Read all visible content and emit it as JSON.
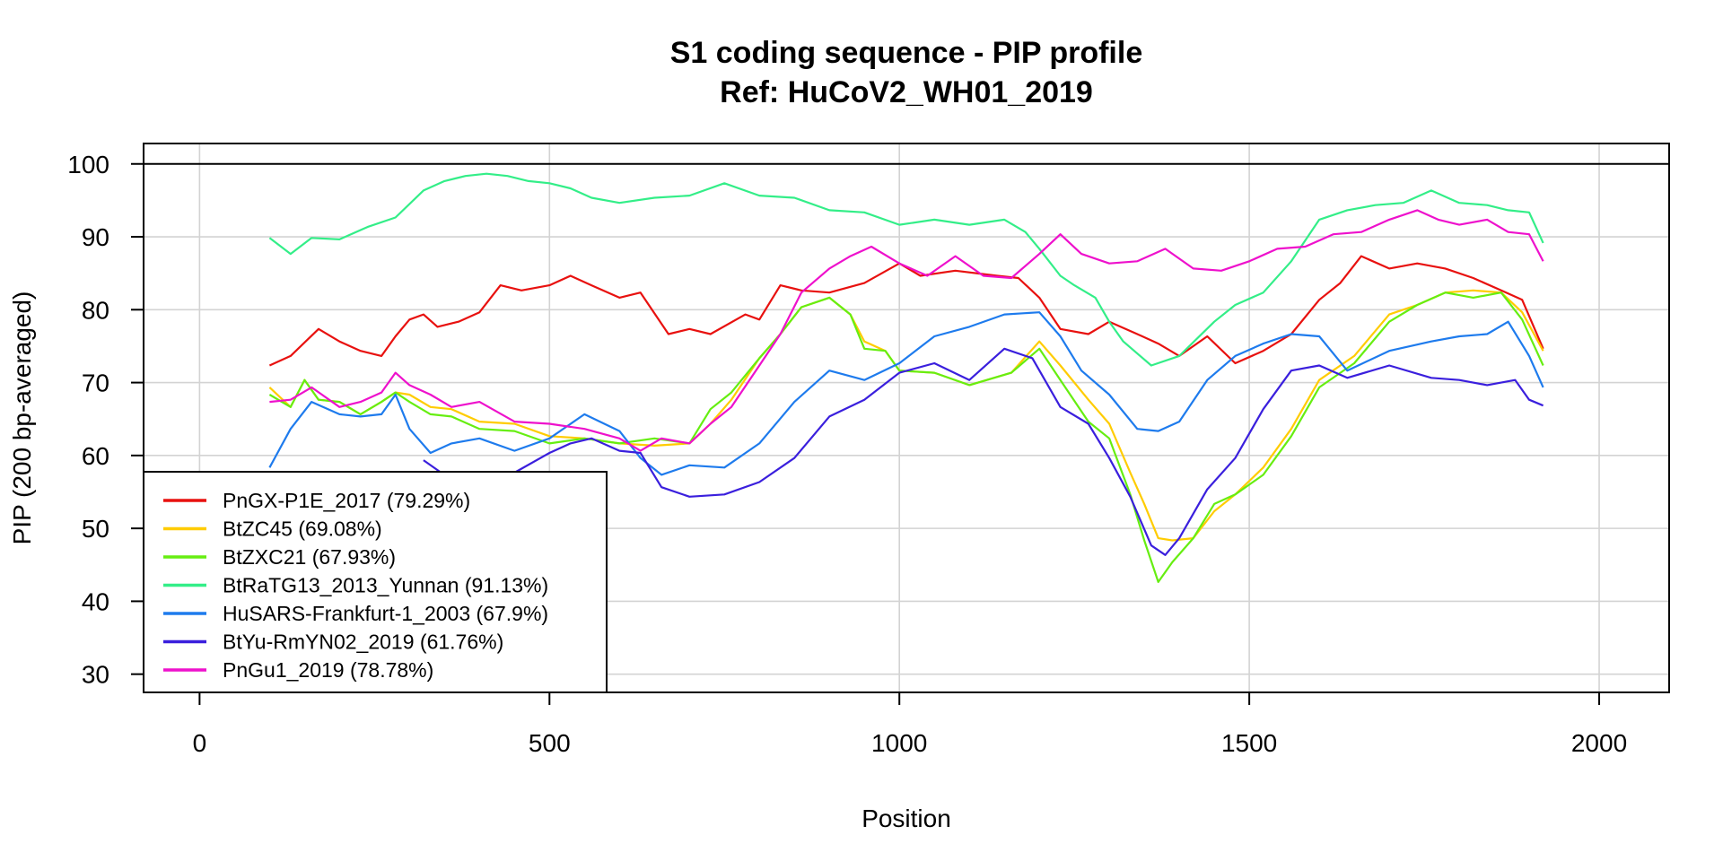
{
  "chart_data": {
    "type": "line",
    "title": "S1 coding sequence - PIP profile",
    "subtitle": "Ref: HuCoV2_WH01_2019",
    "xlabel": "Position",
    "ylabel": "PIP (200 bp-averaged)",
    "xlim": [
      -80,
      2100
    ],
    "ylim": [
      27.5,
      102.8
    ],
    "xticks": [
      0,
      500,
      1000,
      1500,
      2000
    ],
    "yticks": [
      30,
      40,
      50,
      60,
      70,
      80,
      90,
      100
    ],
    "grid": true,
    "reference_line": 100,
    "legend_position": "bottom-left",
    "series": [
      {
        "name": "PnGX-P1E_2017 (79.29%)",
        "color": "#e8110f",
        "x": [
          100,
          130,
          170,
          200,
          230,
          260,
          280,
          300,
          320,
          340,
          370,
          400,
          430,
          460,
          500,
          530,
          560,
          600,
          630,
          670,
          700,
          730,
          780,
          800,
          830,
          860,
          900,
          950,
          1000,
          1030,
          1080,
          1140,
          1170,
          1200,
          1230,
          1270,
          1300,
          1340,
          1370,
          1400,
          1440,
          1480,
          1520,
          1560,
          1600,
          1630,
          1660,
          1700,
          1740,
          1780,
          1820,
          1860,
          1890,
          1920
        ],
        "y": [
          72,
          74,
          77,
          76,
          74,
          74,
          76,
          79,
          79,
          78,
          78,
          80,
          83,
          83,
          83,
          85,
          83,
          82,
          82,
          77,
          77,
          77,
          79,
          79,
          83,
          83,
          82,
          84,
          86,
          85,
          85,
          85,
          84,
          82,
          77,
          77,
          78,
          77,
          75,
          74,
          76,
          73,
          74,
          77,
          81,
          84,
          87,
          86,
          86,
          86,
          84,
          83,
          81,
          75
        ]
      },
      {
        "name": "BtZC45 (69.08%)",
        "color": "#ffcc00",
        "x": [
          100,
          130,
          150,
          170,
          200,
          230,
          260,
          280,
          300,
          330,
          360,
          400,
          450,
          500,
          550,
          600,
          650,
          700,
          730,
          760,
          800,
          830,
          860,
          900,
          930,
          950,
          980,
          1000,
          1050,
          1100,
          1160,
          1200,
          1230,
          1270,
          1300,
          1330,
          1350,
          1370,
          1390,
          1420,
          1450,
          1480,
          1520,
          1560,
          1600,
          1650,
          1700,
          1740,
          1780,
          1820,
          1860,
          1890,
          1920
        ],
        "y": [
          69,
          67,
          70,
          68,
          67,
          66,
          67,
          69,
          68,
          67,
          66,
          65,
          64,
          63,
          62,
          62,
          61,
          62,
          64,
          68,
          73,
          77,
          80,
          82,
          79,
          76,
          74,
          72,
          71,
          70,
          71,
          76,
          72,
          68,
          64,
          58,
          53,
          49,
          48,
          49,
          52,
          55,
          58,
          64,
          70,
          74,
          79,
          81,
          82,
          83,
          82,
          80,
          74
        ]
      },
      {
        "name": "BtZXC21 (67.93%)",
        "color": "#66ee11",
        "x": [
          100,
          130,
          150,
          170,
          200,
          230,
          260,
          280,
          300,
          330,
          360,
          400,
          450,
          500,
          550,
          600,
          650,
          700,
          730,
          760,
          800,
          830,
          860,
          900,
          930,
          950,
          980,
          1000,
          1050,
          1100,
          1160,
          1200,
          1230,
          1270,
          1300,
          1330,
          1350,
          1370,
          1390,
          1420,
          1450,
          1480,
          1520,
          1560,
          1600,
          1650,
          1700,
          1740,
          1780,
          1820,
          1860,
          1890,
          1920
        ],
        "y": [
          68,
          67,
          70,
          68,
          67,
          66,
          67,
          69,
          67,
          66,
          65,
          64,
          63,
          62,
          62,
          62,
          62,
          62,
          66,
          69,
          73,
          77,
          80,
          82,
          79,
          75,
          74,
          72,
          71,
          70,
          71,
          75,
          70,
          65,
          62,
          55,
          48,
          43,
          45,
          49,
          53,
          55,
          57,
          63,
          69,
          73,
          78,
          81,
          82,
          82,
          82,
          79,
          72
        ]
      },
      {
        "name": "BtRaTG13_2013_Yunnan (91.13%)",
        "color": "#33ee88",
        "x": [
          100,
          130,
          160,
          200,
          240,
          280,
          320,
          350,
          380,
          410,
          440,
          470,
          500,
          530,
          560,
          600,
          650,
          700,
          750,
          800,
          850,
          900,
          950,
          1000,
          1050,
          1100,
          1150,
          1180,
          1200,
          1230,
          1250,
          1280,
          1300,
          1320,
          1360,
          1400,
          1450,
          1480,
          1520,
          1560,
          1600,
          1640,
          1680,
          1720,
          1760,
          1800,
          1840,
          1870,
          1900,
          1920
        ],
        "y": [
          89.5,
          88,
          89.5,
          90,
          91,
          93,
          96,
          98,
          98,
          99,
          98,
          98,
          97,
          97,
          95,
          95,
          95,
          96,
          97,
          96,
          95,
          94,
          93,
          92,
          92,
          92,
          92,
          91,
          88,
          85,
          83,
          82,
          78,
          76,
          72,
          74,
          78,
          81,
          82,
          87,
          92,
          94,
          94,
          95,
          96,
          95,
          94,
          94,
          93,
          89.5
        ]
      },
      {
        "name": "HuSARS-Frankfurt-1_2003 (67.9%)",
        "color": "#1e7bed",
        "x": [
          100,
          130,
          160,
          200,
          230,
          260,
          280,
          300,
          330,
          360,
          400,
          450,
          500,
          550,
          600,
          630,
          660,
          700,
          750,
          800,
          850,
          900,
          950,
          1000,
          1050,
          1100,
          1150,
          1200,
          1230,
          1260,
          1300,
          1340,
          1370,
          1400,
          1440,
          1480,
          1520,
          1560,
          1600,
          1640,
          1700,
          1760,
          1800,
          1840,
          1870,
          1900,
          1920
        ],
        "y": [
          58,
          64,
          67,
          66,
          65,
          66,
          68,
          64,
          60,
          62,
          62,
          61,
          62,
          66,
          63,
          60,
          57,
          59,
          58,
          62,
          67,
          72,
          70,
          73,
          76,
          78,
          79,
          80,
          76,
          72,
          68,
          64,
          63,
          65,
          70,
          74,
          75,
          77,
          76,
          72,
          74,
          76,
          76,
          77,
          78,
          74,
          69
        ]
      },
      {
        "name": "BtYu-RmYN02_2019 (61.76%)",
        "color": "#3a1fdd",
        "x": [
          320,
          360,
          400,
          450,
          500,
          530,
          560,
          600,
          630,
          660,
          700,
          750,
          800,
          850,
          900,
          950,
          1000,
          1050,
          1100,
          1150,
          1190,
          1230,
          1270,
          1300,
          1330,
          1360,
          1380,
          1400,
          1440,
          1480,
          1520,
          1560,
          1600,
          1640,
          1700,
          1760,
          1800,
          1840,
          1880,
          1900,
          1920
        ],
        "y": [
          59,
          57,
          57,
          58,
          60,
          62,
          62,
          61,
          60,
          56,
          54,
          55,
          56,
          60,
          65,
          68,
          71,
          73,
          70,
          75,
          73,
          67,
          64,
          60,
          54,
          48,
          46,
          49,
          55,
          60,
          66,
          72,
          72,
          71,
          72,
          71,
          70,
          70,
          70,
          68,
          66.5
        ]
      },
      {
        "name": "PnGu1_2019 (78.78%)",
        "color": "#ee11cc",
        "x": [
          100,
          130,
          160,
          200,
          230,
          260,
          280,
          300,
          330,
          360,
          400,
          450,
          500,
          550,
          600,
          630,
          660,
          700,
          730,
          760,
          800,
          830,
          860,
          900,
          930,
          960,
          1000,
          1040,
          1080,
          1120,
          1160,
          1200,
          1230,
          1260,
          1300,
          1340,
          1380,
          1420,
          1460,
          1500,
          1540,
          1580,
          1620,
          1660,
          1700,
          1740,
          1770,
          1800,
          1840,
          1870,
          1900,
          1920
        ],
        "y": [
          67,
          68,
          69,
          67,
          67,
          69,
          71,
          70,
          68,
          67,
          67,
          65,
          64,
          64,
          62,
          61,
          62,
          62,
          64,
          67,
          72,
          77,
          82,
          86,
          87,
          89,
          86,
          85,
          87,
          85,
          84,
          88,
          90,
          88,
          86,
          87,
          88,
          86,
          85,
          87,
          88,
          89,
          90,
          91,
          92,
          94,
          92,
          92,
          92,
          91,
          90,
          87
        ]
      }
    ]
  }
}
